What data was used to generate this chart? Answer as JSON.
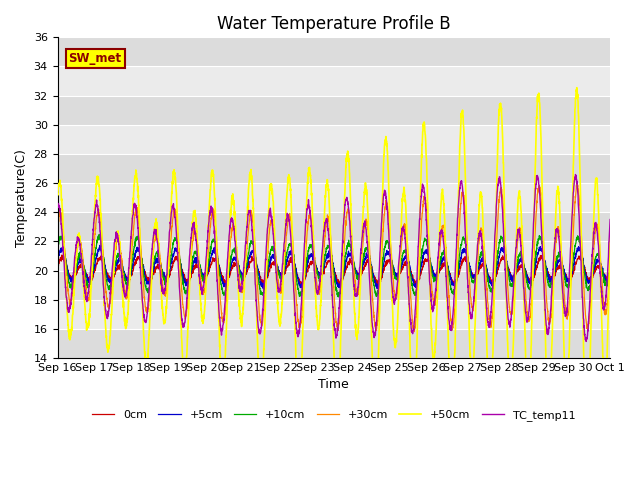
{
  "title": "Water Temperature Profile B",
  "xlabel": "Time",
  "ylabel": "Temperature(C)",
  "ylim": [
    14,
    36
  ],
  "tick_labels": [
    "Sep 16",
    "Sep 17",
    "Sep 18",
    "Sep 19",
    "Sep 20",
    "Sep 21",
    "Sep 22",
    "Sep 23",
    "Sep 24",
    "Sep 25",
    "Sep 26",
    "Sep 27",
    "Sep 28",
    "Sep 29",
    "Sep 30",
    "Oct 1"
  ],
  "annotation_text": "SW_met",
  "annotation_bg": "#FFFF00",
  "annotation_border": "#8B0000",
  "legend_labels": [
    "0cm",
    "+5cm",
    "+10cm",
    "+30cm",
    "+50cm",
    "TC_temp11"
  ],
  "colors": [
    "#CC0000",
    "#0000CC",
    "#00AA00",
    "#FF8800",
    "#FFFF00",
    "#AA00AA"
  ],
  "band_colors": [
    "#DCDCDC",
    "#EBEBEB"
  ],
  "title_fontsize": 12,
  "axis_fontsize": 9,
  "tick_fontsize": 8
}
